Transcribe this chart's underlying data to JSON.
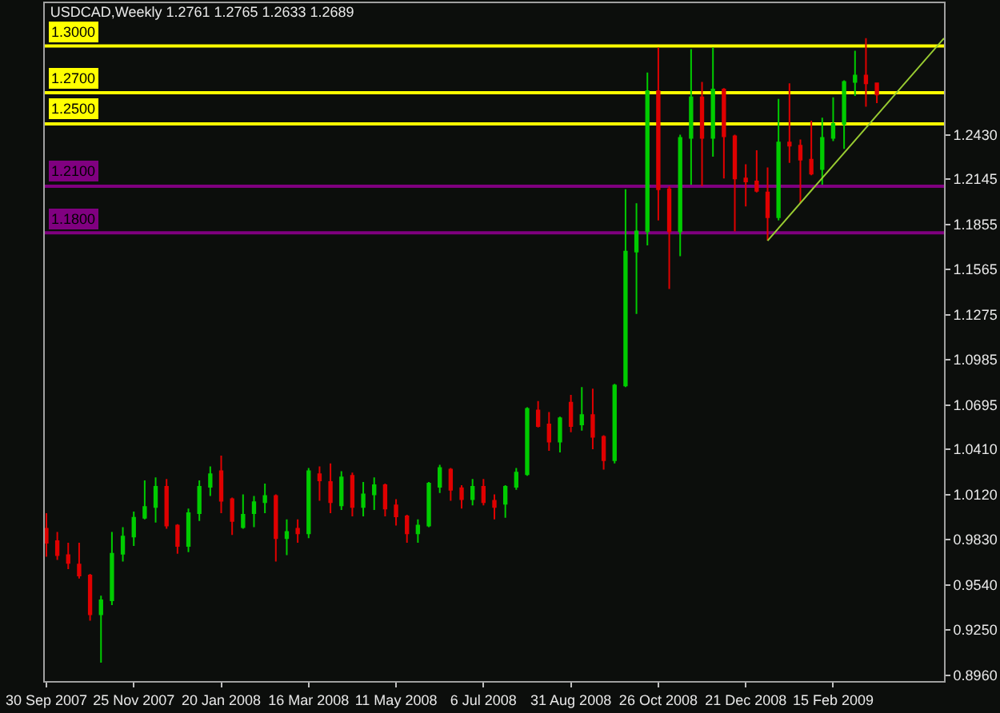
{
  "chart_data": {
    "type": "candlestick",
    "title": "USDCAD,Weekly 1.2761 1.2765 1.2633 1.2689",
    "x": [
      "2007-09-30",
      "2007-10-07",
      "2007-10-14",
      "2007-10-21",
      "2007-10-28",
      "2007-11-04",
      "2007-11-11",
      "2007-11-18",
      "2007-11-25",
      "2007-12-02",
      "2007-12-09",
      "2007-12-16",
      "2007-12-23",
      "2007-12-30",
      "2008-01-06",
      "2008-01-13",
      "2008-01-20",
      "2008-01-27",
      "2008-02-03",
      "2008-02-10",
      "2008-02-17",
      "2008-02-24",
      "2008-03-02",
      "2008-03-09",
      "2008-03-16",
      "2008-03-23",
      "2008-03-30",
      "2008-04-06",
      "2008-04-13",
      "2008-04-20",
      "2008-04-27",
      "2008-05-04",
      "2008-05-11",
      "2008-05-18",
      "2008-05-25",
      "2008-06-01",
      "2008-06-08",
      "2008-06-15",
      "2008-06-22",
      "2008-06-29",
      "2008-07-06",
      "2008-07-13",
      "2008-07-20",
      "2008-07-27",
      "2008-08-03",
      "2008-08-10",
      "2008-08-17",
      "2008-08-24",
      "2008-08-31",
      "2008-09-07",
      "2008-09-14",
      "2008-09-21",
      "2008-09-28",
      "2008-10-05",
      "2008-10-12",
      "2008-10-19",
      "2008-10-26",
      "2008-11-02",
      "2008-11-09",
      "2008-11-16",
      "2008-11-23",
      "2008-11-30",
      "2008-12-07",
      "2008-12-14",
      "2008-12-21",
      "2008-12-28",
      "2009-01-04",
      "2009-01-11",
      "2009-01-18",
      "2009-01-25",
      "2009-02-01",
      "2009-02-08",
      "2009-02-15",
      "2009-02-22",
      "2009-03-01",
      "2009-03-08",
      "2009-03-15"
    ],
    "ohlc": [
      [
        0.99,
        1.0,
        0.972,
        0.981
      ],
      [
        0.982,
        0.988,
        0.97,
        0.973
      ],
      [
        0.973,
        0.981,
        0.964,
        0.968
      ],
      [
        0.967,
        0.981,
        0.958,
        0.96
      ],
      [
        0.96,
        0.961,
        0.931,
        0.935
      ],
      [
        0.935,
        0.947,
        0.904,
        0.944
      ],
      [
        0.944,
        0.988,
        0.941,
        0.974
      ],
      [
        0.974,
        0.991,
        0.969,
        0.985
      ],
      [
        0.985,
        1.001,
        0.979,
        0.997
      ],
      [
        0.997,
        1.021,
        0.996,
        1.004
      ],
      [
        1.004,
        1.023,
        0.994,
        1.017
      ],
      [
        1.017,
        1.022,
        0.99,
        0.992
      ],
      [
        0.992,
        0.993,
        0.974,
        0.979
      ],
      [
        0.979,
        1.003,
        0.975,
        1.0
      ],
      [
        1.0,
        1.021,
        0.995,
        1.017
      ],
      [
        1.017,
        1.03,
        1.011,
        1.025
      ],
      [
        1.027,
        1.037,
        1.0,
        1.008
      ],
      [
        1.009,
        1.01,
        0.986,
        0.995
      ],
      [
        0.991,
        1.012,
        0.99,
        0.999
      ],
      [
        1.0,
        1.011,
        0.991,
        1.007
      ],
      [
        1.007,
        1.019,
        1.0,
        1.011
      ],
      [
        1.011,
        1.012,
        0.969,
        0.984
      ],
      [
        0.984,
        0.996,
        0.973,
        0.988
      ],
      [
        0.99,
        0.996,
        0.981,
        0.987
      ],
      [
        0.987,
        1.029,
        0.984,
        1.027
      ],
      [
        1.025,
        1.03,
        1.008,
        1.021
      ],
      [
        1.02,
        1.032,
        1.0,
        1.007
      ],
      [
        1.005,
        1.027,
        1.002,
        1.023
      ],
      [
        1.024,
        1.026,
        0.998,
        1.004
      ],
      [
        1.004,
        1.02,
        0.998,
        1.012
      ],
      [
        1.012,
        1.023,
        1.002,
        1.018
      ],
      [
        1.018,
        1.019,
        0.998,
        1.003
      ],
      [
        1.005,
        1.009,
        0.992,
        0.998
      ],
      [
        0.998,
        0.999,
        0.981,
        0.987
      ],
      [
        0.987,
        0.996,
        0.981,
        0.992
      ],
      [
        0.992,
        1.02,
        0.991,
        1.019
      ],
      [
        1.017,
        1.031,
        1.013,
        1.029
      ],
      [
        1.028,
        1.029,
        1.008,
        1.015
      ],
      [
        1.016,
        1.018,
        1.003,
        1.009
      ],
      [
        1.009,
        1.022,
        1.005,
        1.017
      ],
      [
        1.017,
        1.022,
        1.005,
        1.007
      ],
      [
        1.008,
        1.012,
        0.996,
        1.004
      ],
      [
        1.006,
        1.018,
        0.997,
        1.017
      ],
      [
        1.017,
        1.029,
        1.015,
        1.026
      ],
      [
        1.025,
        1.068,
        1.024,
        1.067
      ],
      [
        1.066,
        1.072,
        1.055,
        1.056
      ],
      [
        1.057,
        1.065,
        1.04,
        1.046
      ],
      [
        1.046,
        1.062,
        1.039,
        1.061
      ],
      [
        1.071,
        1.076,
        1.052,
        1.056
      ],
      [
        1.057,
        1.081,
        1.053,
        1.063
      ],
      [
        1.063,
        1.08,
        1.041,
        1.049
      ],
      [
        1.049,
        1.05,
        1.028,
        1.034
      ],
      [
        1.034,
        1.083,
        1.032,
        1.082
      ],
      [
        1.082,
        1.208,
        1.081,
        1.168
      ],
      [
        1.168,
        1.199,
        1.128,
        1.181
      ],
      [
        1.181,
        1.283,
        1.172,
        1.271
      ],
      [
        1.271,
        1.299,
        1.188,
        1.208
      ],
      [
        1.208,
        1.21,
        1.144,
        1.181
      ],
      [
        1.181,
        1.243,
        1.165,
        1.241
      ],
      [
        1.241,
        1.298,
        1.211,
        1.267
      ],
      [
        1.267,
        1.277,
        1.21,
        1.241
      ],
      [
        1.241,
        1.299,
        1.229,
        1.272
      ],
      [
        1.272,
        1.273,
        1.215,
        1.242
      ],
      [
        1.242,
        1.243,
        1.181,
        1.215
      ],
      [
        1.215,
        1.224,
        1.197,
        1.213
      ],
      [
        1.213,
        1.233,
        1.206,
        1.207
      ],
      [
        1.206,
        1.222,
        1.175,
        1.19
      ],
      [
        1.19,
        1.266,
        1.188,
        1.238
      ],
      [
        1.238,
        1.276,
        1.225,
        1.236
      ],
      [
        1.236,
        1.24,
        1.199,
        1.227
      ],
      [
        1.227,
        1.252,
        1.217,
        1.218
      ],
      [
        1.221,
        1.254,
        1.211,
        1.241
      ],
      [
        1.241,
        1.267,
        1.239,
        1.25
      ],
      [
        1.25,
        1.278,
        1.234,
        1.277
      ],
      [
        1.277,
        1.297,
        1.268,
        1.281
      ],
      [
        1.281,
        1.305,
        1.261,
        1.276
      ],
      [
        1.2761,
        1.2765,
        1.2633,
        1.2689
      ]
    ],
    "colors": [
      "#e00000",
      "#e00000",
      "#e00000",
      "#e00000",
      "#e00000",
      "#00cc00",
      "#00cc00",
      "#00cc00",
      "#00cc00",
      "#00cc00",
      "#00cc00",
      "#e00000",
      "#e00000",
      "#00cc00",
      "#00cc00",
      "#00cc00",
      "#e00000",
      "#e00000",
      "#00cc00",
      "#00cc00",
      "#00cc00",
      "#e00000",
      "#00cc00",
      "#e00000",
      "#00cc00",
      "#e00000",
      "#e00000",
      "#00cc00",
      "#e00000",
      "#00cc00",
      "#00cc00",
      "#e00000",
      "#e00000",
      "#e00000",
      "#00cc00",
      "#00cc00",
      "#00cc00",
      "#e00000",
      "#e00000",
      "#00cc00",
      "#e00000",
      "#e00000",
      "#00cc00",
      "#00cc00",
      "#00cc00",
      "#e00000",
      "#e00000",
      "#00cc00",
      "#e00000",
      "#00cc00",
      "#e00000",
      "#e00000",
      "#00cc00",
      "#00cc00",
      "#00cc00",
      "#00cc00",
      "#e00000",
      "#e00000",
      "#00cc00",
      "#00cc00",
      "#e00000",
      "#00cc00",
      "#e00000",
      "#e00000",
      "#e00000",
      "#e00000",
      "#e00000",
      "#00cc00",
      "#e00000",
      "#e00000",
      "#e00000",
      "#00cc00",
      "#00cc00",
      "#00cc00",
      "#00cc00",
      "#e00000",
      "#e00000"
    ],
    "series": [
      {
        "type": "line",
        "color": "#9acd32",
        "x": [
          "2009-01-04",
          "2009-04-27"
        ],
        "values": [
          1.175,
          1.305
        ]
      }
    ],
    "xlim": [
      "2007-09-29",
      "2009-04-27"
    ],
    "xticks": [
      {
        "value": "2007-09-30",
        "label": "30 Sep 2007"
      },
      {
        "value": "2007-11-25",
        "label": "25 Nov 2007"
      },
      {
        "value": "2008-01-20",
        "label": "20 Jan 2008"
      },
      {
        "value": "2008-03-16",
        "label": "16 Mar 2008"
      },
      {
        "value": "2008-05-11",
        "label": "11 May 2008"
      },
      {
        "value": "2008-07-06",
        "label": "6 Jul 2008"
      },
      {
        "value": "2008-08-31",
        "label": "31 Aug 2008"
      },
      {
        "value": "2008-10-26",
        "label": "26 Oct 2008"
      },
      {
        "value": "2008-12-21",
        "label": "21 Dec 2008"
      },
      {
        "value": "2009-02-15",
        "label": "15 Feb 2009"
      }
    ],
    "ylim": [
      0.8922,
      1.3275
    ],
    "yticks": [
      {
        "value": 0.896,
        "label": "0.8960"
      },
      {
        "value": 0.925,
        "label": "0.9250"
      },
      {
        "value": 0.954,
        "label": "0.9540"
      },
      {
        "value": 0.983,
        "label": "0.9830"
      },
      {
        "value": 1.012,
        "label": "1.0120"
      },
      {
        "value": 1.041,
        "label": "1.0410"
      },
      {
        "value": 1.0695,
        "label": "1.0695"
      },
      {
        "value": 1.0985,
        "label": "1.0985"
      },
      {
        "value": 1.1275,
        "label": "1.1275"
      },
      {
        "value": 1.1565,
        "label": "1.1565"
      },
      {
        "value": 1.1855,
        "label": "1.1855"
      },
      {
        "value": 1.2145,
        "label": "1.2145"
      },
      {
        "value": 1.243,
        "label": "1.2430"
      }
    ],
    "ref_lines": [
      {
        "axis": "y",
        "value": 1.3,
        "label": "1.3000",
        "color": "#ffff00"
      },
      {
        "axis": "y",
        "value": 1.27,
        "label": "1.2700",
        "color": "#ffff00"
      },
      {
        "axis": "y",
        "value": 1.25,
        "label": "1.2500",
        "color": "#ffff00"
      },
      {
        "axis": "y",
        "value": 1.21,
        "label": "1.2100",
        "color": "#800080"
      },
      {
        "axis": "y",
        "value": 1.18,
        "label": "1.1800",
        "color": "#800080"
      }
    ]
  }
}
